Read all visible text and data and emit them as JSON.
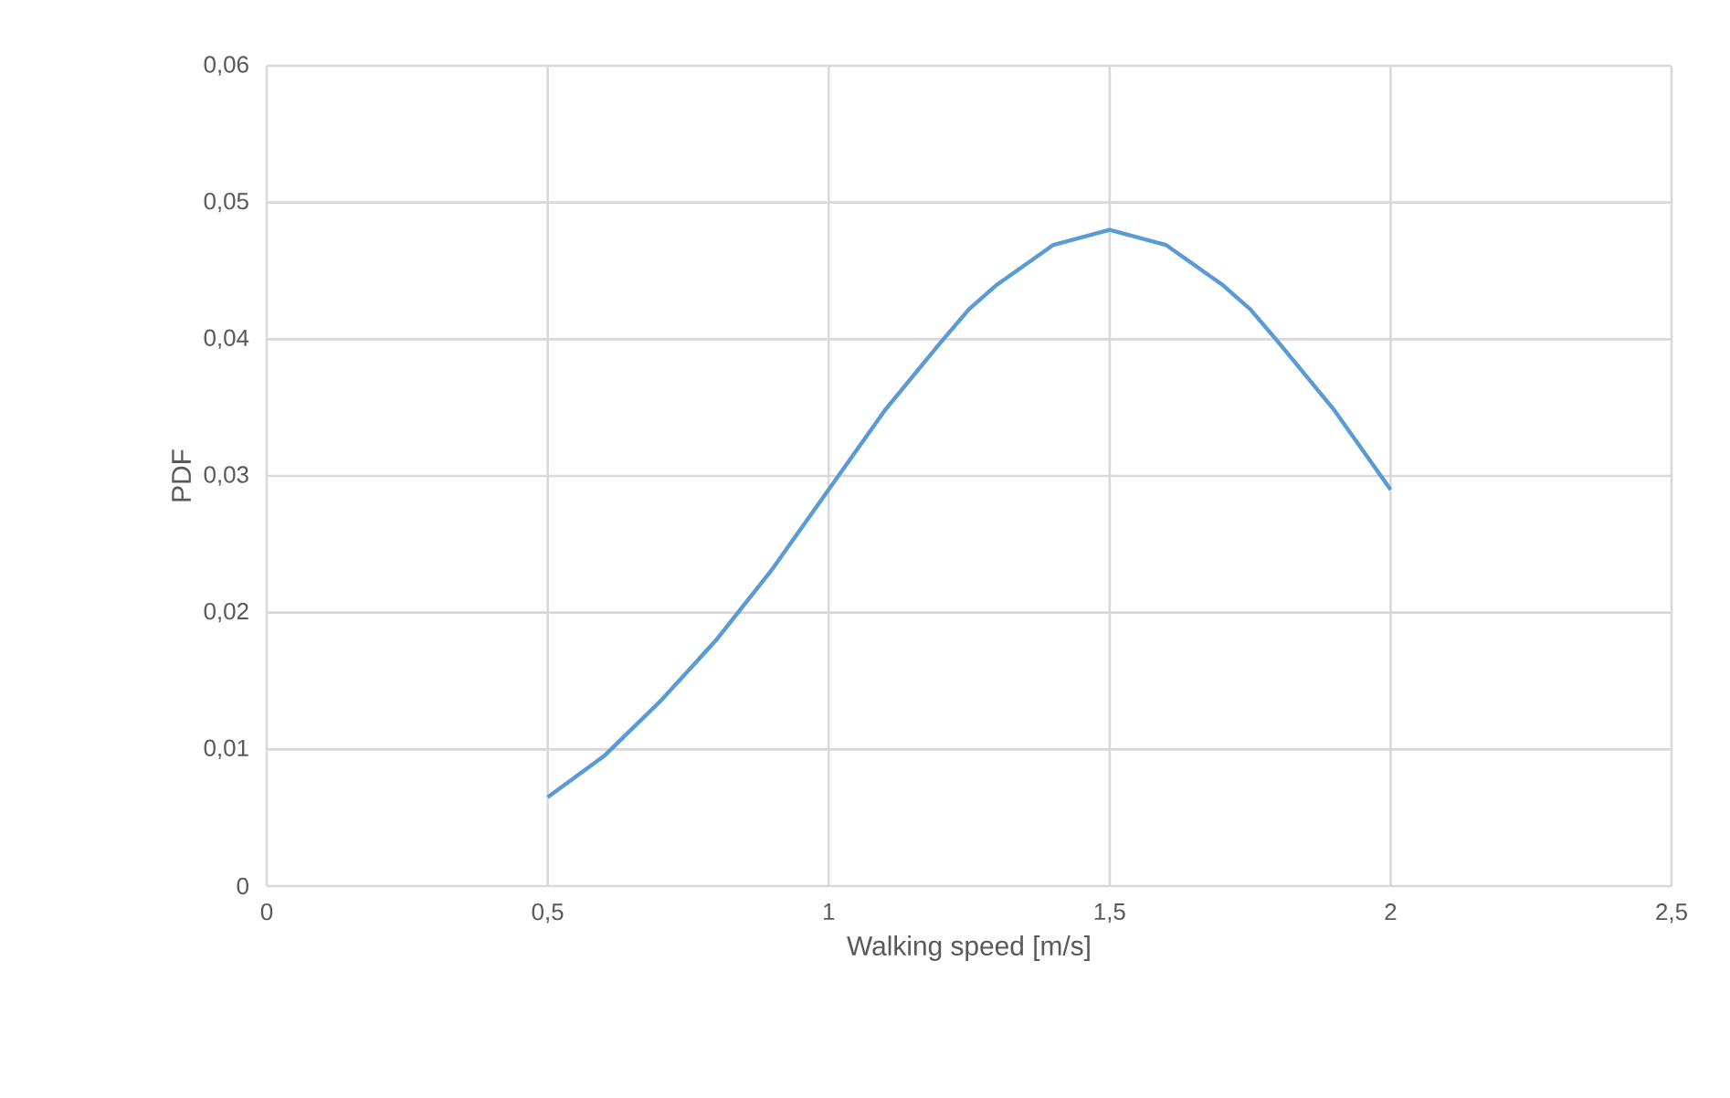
{
  "chart_data": {
    "type": "line",
    "xlabel": "Walking speed [m/s]",
    "ylabel": "PDF",
    "x": [
      0.5,
      0.6,
      0.7,
      0.8,
      0.9,
      1.0,
      1.1,
      1.2,
      1.25,
      1.3,
      1.4,
      1.5,
      1.6,
      1.7,
      1.75,
      1.8,
      1.9,
      2.0
    ],
    "series": [
      {
        "color": "#5b9bd5",
        "values": [
          0.0065,
          0.0095,
          0.0135,
          0.018,
          0.0232,
          0.029,
          0.0348,
          0.0398,
          0.0422,
          0.044,
          0.0469,
          0.048,
          0.0469,
          0.044,
          0.0422,
          0.0398,
          0.0348,
          0.029
        ]
      }
    ],
    "xlim": [
      0,
      2.5
    ],
    "xticks": [
      0,
      {
        "value": 0.5,
        "label": "0,5"
      },
      1,
      {
        "value": 1.5,
        "label": "1,5"
      },
      2,
      {
        "value": 2.5,
        "label": "2,5"
      }
    ],
    "ylim": [
      0,
      0.06
    ],
    "yticks": [
      0,
      {
        "value": 0.01,
        "label": "0,01"
      },
      {
        "value": 0.02,
        "label": "0,02"
      },
      {
        "value": 0.03,
        "label": "0,03"
      },
      {
        "value": 0.04,
        "label": "0,04"
      },
      {
        "value": 0.05,
        "label": "0,05"
      },
      {
        "value": 0.06,
        "label": "0,06"
      }
    ],
    "grid": true,
    "marker": "none",
    "line_style": "solid"
  }
}
